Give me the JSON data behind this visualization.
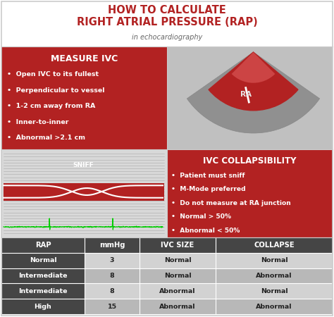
{
  "title_line1": "HOW TO CALCULATE",
  "title_line2": "RIGHT ATRIAL PRESSURE (RAP)",
  "subtitle": "in echocardiography",
  "title_color": "#b22222",
  "subtitle_color": "#666666",
  "bg_color": "#ffffff",
  "red_color": "#b22222",
  "dark_gray": "#444444",
  "light_gray1": "#c8c8c8",
  "light_gray2": "#b0b0b0",
  "echo_bg": "#c0c0c0",
  "sniff_bg": "#d8d8d8",
  "measure_ivc_title": "MEASURE IVC",
  "measure_ivc_bullets": [
    "Open IVC to its fullest",
    "Perpendicular to vessel",
    "1-2 cm away from RA",
    "Inner-to-inner",
    "Abnormal >2.1 cm"
  ],
  "collapsibility_title": "IVC COLLAPSIBILITY",
  "collapsibility_bullets": [
    "Patient must sniff",
    "M-Mode preferred",
    "Do not measure at RA junction",
    "Normal > 50%",
    "Abnormal < 50%"
  ],
  "table_headers": [
    "RAP",
    "mmHg",
    "IVC SIZE",
    "COLLAPSE"
  ],
  "table_rows": [
    [
      "Normal",
      "3",
      "Normal",
      "Normal"
    ],
    [
      "Intermediate",
      "8",
      "Normal",
      "Abnormal"
    ],
    [
      "Intermediate",
      "8",
      "Abnormal",
      "Normal"
    ],
    [
      "High",
      "15",
      "Abnormal",
      "Abnormal"
    ]
  ],
  "sniff_label": "SNIFF",
  "ra_label": "RA",
  "border_color": "#cccccc",
  "white": "#ffffff",
  "table_col0_bg": "#454545",
  "table_header_bg": "#454545",
  "table_row_colors": [
    "#d2d2d2",
    "#b8b8b8",
    "#d2d2d2",
    "#b8b8b8"
  ]
}
